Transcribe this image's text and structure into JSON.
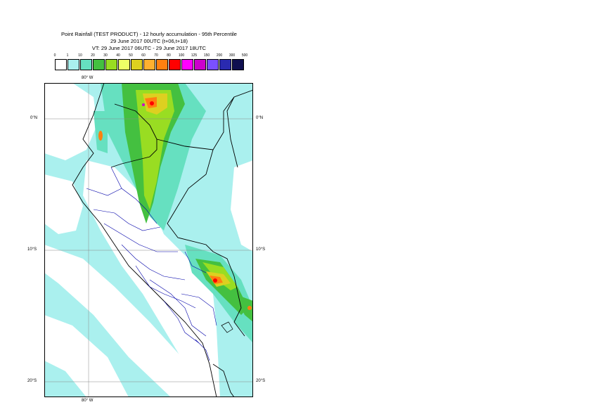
{
  "header": {
    "line1": "Point Rainfall (TEST PRODUCT) - 12 hourly accumulation - 95th Percentile",
    "line2": "29 June 2017 00UTC (t+06,t+18)",
    "line3": "VT: 29 June 2017 06UTC - 29 June 2017 18UTC"
  },
  "legend": {
    "values": [
      "0",
      "1",
      "10",
      "20",
      "30",
      "40",
      "50",
      "60",
      "70",
      "80",
      "100",
      "125",
      "150",
      "200",
      "300",
      "500"
    ],
    "colors": [
      "#ffffff",
      "#aaf0ee",
      "#66e0c0",
      "#44c040",
      "#99dd22",
      "#eeff66",
      "#ddd020",
      "#ffb030",
      "#ff8010",
      "#ff0000",
      "#ff00ff",
      "#cc00cc",
      "#7a50ff",
      "#2a2ab0",
      "#101050"
    ]
  },
  "map": {
    "lon_label_top": "80° W",
    "lon_label_bottom": "80° W",
    "lat_labels": [
      "0°N",
      "10°S",
      "20°S"
    ],
    "sea_color": "#aaf0ee",
    "land_light_color": "#66e0c0",
    "country_border_color": "#000000",
    "region_border_color": "#0000aa",
    "grid_color": "#888888"
  }
}
